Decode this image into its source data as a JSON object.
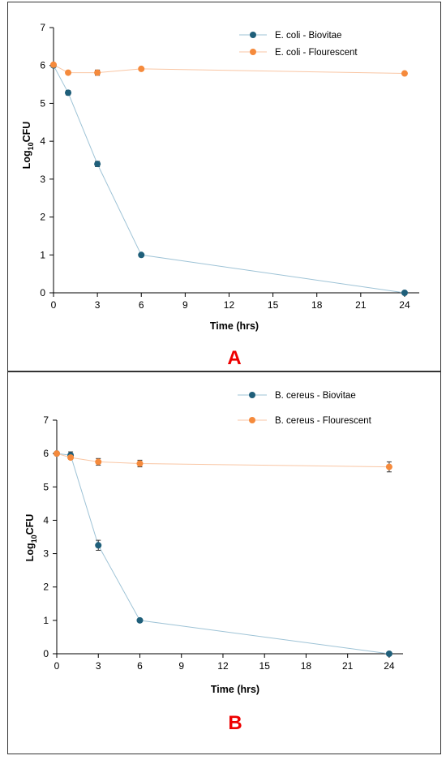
{
  "chart_data": [
    {
      "type": "line",
      "panel_label": "A",
      "xlabel": "Time (hrs)",
      "ylabel": {
        "prefix": "Log",
        "subscript": "10",
        "suffix": "CFU"
      },
      "xlim": [
        0,
        25
      ],
      "ylim": [
        0,
        7
      ],
      "xticks": [
        0,
        3,
        6,
        9,
        12,
        15,
        18,
        21,
        24
      ],
      "yticks": [
        0,
        1,
        2,
        3,
        4,
        5,
        6,
        7
      ],
      "grid": false,
      "legend_position": "top-right",
      "series": [
        {
          "name": "E. coli - Biovitae",
          "color": "#1f5f7a",
          "line_color": "#9ec3d6",
          "x": [
            0,
            1,
            3,
            6,
            24
          ],
          "y": [
            6.0,
            5.28,
            3.4,
            1.0,
            0.0
          ],
          "error": [
            0.03,
            0.06,
            0.07,
            0.02,
            0.02
          ]
        },
        {
          "name": "E. coli - Flourescent",
          "color": "#f58a3c",
          "line_color": "#f9c6a4",
          "x": [
            0,
            1,
            3,
            6,
            24
          ],
          "y": [
            6.02,
            5.81,
            5.81,
            5.91,
            5.79
          ],
          "error": [
            0.02,
            0.03,
            0.07,
            0.03,
            0.04
          ]
        }
      ]
    },
    {
      "type": "line",
      "panel_label": "B",
      "xlabel": "Time (hrs)",
      "ylabel": {
        "prefix": "Log",
        "subscript": "10",
        "suffix": "CFU"
      },
      "xlim": [
        0,
        25
      ],
      "ylim": [
        0,
        7
      ],
      "xticks": [
        0,
        3,
        6,
        9,
        12,
        15,
        18,
        21,
        24
      ],
      "yticks": [
        0,
        1,
        2,
        3,
        4,
        5,
        6,
        7
      ],
      "grid": false,
      "legend_position": "top-right",
      "series": [
        {
          "name": "B. cereus - Biovitae",
          "color": "#1f5f7a",
          "line_color": "#9ec3d6",
          "x": [
            0,
            1,
            3,
            6,
            24
          ],
          "y": [
            6.0,
            5.95,
            3.25,
            1.0,
            0.0
          ],
          "error": [
            0.02,
            0.1,
            0.15,
            0.02,
            0.02
          ]
        },
        {
          "name": "B. cereus - Flourescent",
          "color": "#f58a3c",
          "line_color": "#f9c6a4",
          "x": [
            0,
            1,
            3,
            6,
            24
          ],
          "y": [
            6.0,
            5.88,
            5.75,
            5.7,
            5.6
          ],
          "error": [
            0.02,
            0.05,
            0.1,
            0.1,
            0.15
          ]
        }
      ]
    }
  ]
}
